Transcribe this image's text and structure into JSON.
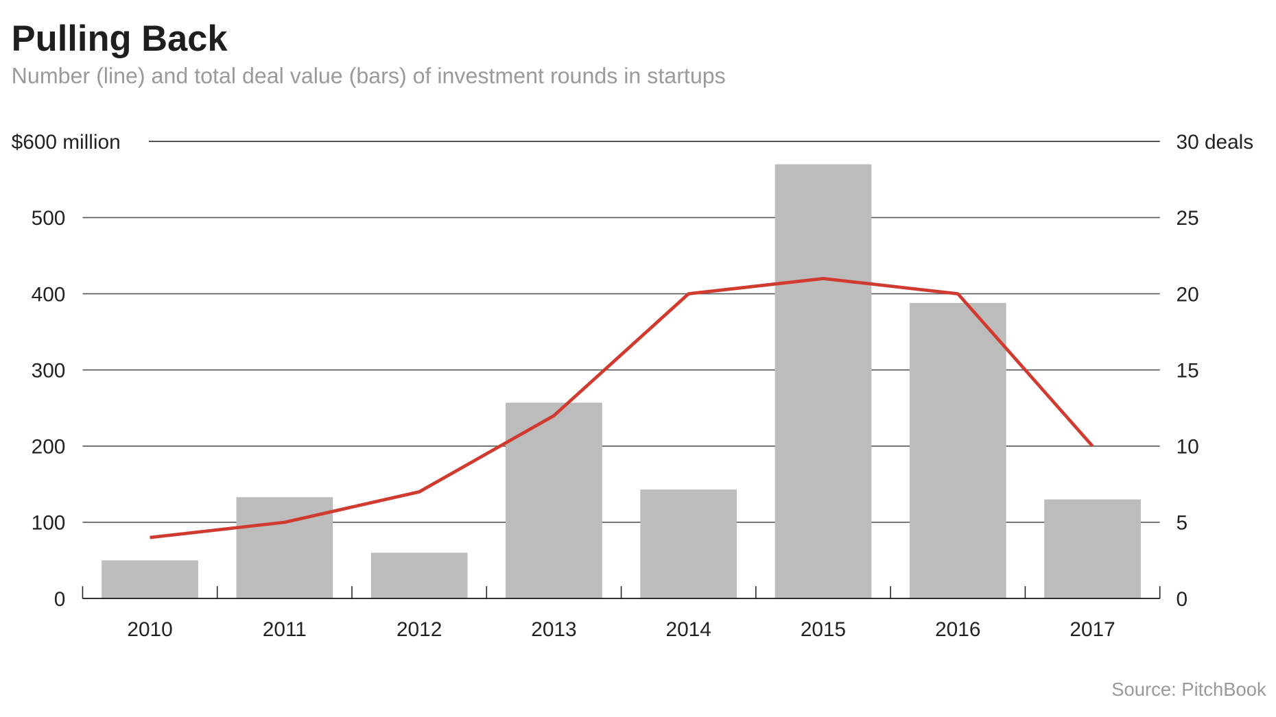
{
  "chart_data": {
    "type": "bar",
    "title": "Pulling Back",
    "subtitle": "Number (line) and total deal value (bars) of investment rounds in startups",
    "source": "Source: PitchBook",
    "categories": [
      "2010",
      "2011",
      "2012",
      "2013",
      "2014",
      "2015",
      "2016",
      "2017"
    ],
    "series": [
      {
        "type": "bar",
        "axis": "left",
        "values": [
          50,
          133,
          60,
          257,
          143,
          570,
          388,
          130
        ],
        "color": "#bcbcbc"
      },
      {
        "type": "line",
        "axis": "right",
        "values": [
          4,
          5,
          7,
          12,
          20,
          21,
          20,
          10
        ],
        "color": "#d13b2f"
      }
    ],
    "left_axis": {
      "ylim": [
        0,
        600
      ],
      "ticks": [
        0,
        100,
        200,
        300,
        400,
        500,
        600
      ],
      "tick_labels": [
        "0",
        "100",
        "200",
        "300",
        "400",
        "500",
        "$600 million"
      ]
    },
    "right_axis": {
      "ylim": [
        0,
        30
      ],
      "ticks": [
        0,
        5,
        10,
        15,
        20,
        25,
        30
      ],
      "tick_labels": [
        "0",
        "5",
        "10",
        "15",
        "20",
        "25",
        "30 deals"
      ]
    },
    "grid": true
  }
}
